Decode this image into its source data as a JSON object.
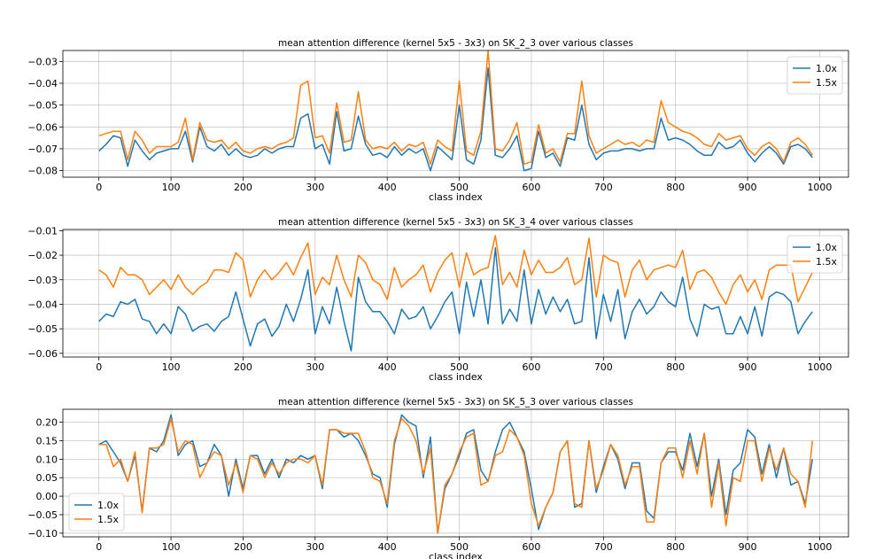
{
  "colors": {
    "series_1": "#1f77b4",
    "series_2": "#ff7f0e"
  },
  "chart_data": [
    {
      "type": "line",
      "title": "mean attention difference (kernel 5x5 - 3x3) on SK_2_3 over various classes",
      "xlabel": "class index",
      "ylabel": "",
      "xlim": [
        -50,
        1040
      ],
      "ylim": [
        -0.083,
        -0.025
      ],
      "xticks": [
        0,
        100,
        200,
        300,
        400,
        500,
        600,
        700,
        800,
        900,
        1000
      ],
      "xtick_labels": [
        "0",
        "100",
        "200",
        "300",
        "400",
        "500",
        "600",
        "700",
        "800",
        "900",
        "1000"
      ],
      "yticks": [
        -0.08,
        -0.07,
        -0.06,
        -0.05,
        -0.04,
        -0.03
      ],
      "ytick_labels": [
        "−0.08",
        "−0.07",
        "−0.06",
        "−0.05",
        "−0.04",
        "−0.03"
      ],
      "grid": true,
      "legend": "top-right",
      "x": [
        0,
        10,
        20,
        30,
        40,
        50,
        60,
        70,
        80,
        90,
        100,
        110,
        120,
        130,
        140,
        150,
        160,
        170,
        180,
        190,
        200,
        210,
        220,
        230,
        240,
        250,
        260,
        270,
        280,
        290,
        300,
        310,
        320,
        330,
        340,
        350,
        360,
        370,
        380,
        390,
        400,
        410,
        420,
        430,
        440,
        450,
        460,
        470,
        480,
        490,
        500,
        510,
        520,
        530,
        540,
        550,
        560,
        570,
        580,
        590,
        600,
        610,
        620,
        630,
        640,
        650,
        660,
        670,
        680,
        690,
        700,
        710,
        720,
        730,
        740,
        750,
        760,
        770,
        780,
        790,
        800,
        810,
        820,
        830,
        840,
        850,
        860,
        870,
        880,
        890,
        900,
        910,
        920,
        930,
        940,
        950,
        960,
        970,
        980,
        990
      ],
      "series": [
        {
          "name": "1.0x",
          "values": [
            -0.071,
            -0.068,
            -0.064,
            -0.065,
            -0.078,
            -0.066,
            -0.071,
            -0.075,
            -0.072,
            -0.071,
            -0.07,
            -0.07,
            -0.062,
            -0.076,
            -0.06,
            -0.069,
            -0.071,
            -0.068,
            -0.073,
            -0.07,
            -0.073,
            -0.074,
            -0.073,
            -0.07,
            -0.072,
            -0.07,
            -0.069,
            -0.069,
            -0.056,
            -0.054,
            -0.07,
            -0.068,
            -0.077,
            -0.053,
            -0.071,
            -0.07,
            -0.055,
            -0.068,
            -0.073,
            -0.072,
            -0.074,
            -0.069,
            -0.073,
            -0.07,
            -0.072,
            -0.07,
            -0.08,
            -0.069,
            -0.072,
            -0.075,
            -0.05,
            -0.075,
            -0.077,
            -0.066,
            -0.033,
            -0.073,
            -0.074,
            -0.07,
            -0.064,
            -0.08,
            -0.079,
            -0.062,
            -0.074,
            -0.072,
            -0.078,
            -0.065,
            -0.066,
            -0.05,
            -0.068,
            -0.075,
            -0.072,
            -0.071,
            -0.071,
            -0.07,
            -0.07,
            -0.071,
            -0.07,
            -0.07,
            -0.056,
            -0.066,
            -0.065,
            -0.066,
            -0.068,
            -0.071,
            -0.073,
            -0.073,
            -0.067,
            -0.07,
            -0.069,
            -0.066,
            -0.072,
            -0.076,
            -0.072,
            -0.069,
            -0.072,
            -0.077,
            -0.069,
            -0.068,
            -0.07,
            -0.074
          ]
        },
        {
          "name": "1.5x",
          "values": [
            -0.064,
            -0.063,
            -0.062,
            -0.062,
            -0.075,
            -0.062,
            -0.066,
            -0.072,
            -0.069,
            -0.069,
            -0.069,
            -0.067,
            -0.056,
            -0.075,
            -0.058,
            -0.066,
            -0.067,
            -0.066,
            -0.07,
            -0.067,
            -0.071,
            -0.072,
            -0.07,
            -0.069,
            -0.07,
            -0.068,
            -0.067,
            -0.065,
            -0.041,
            -0.039,
            -0.065,
            -0.064,
            -0.072,
            -0.049,
            -0.067,
            -0.066,
            -0.044,
            -0.066,
            -0.07,
            -0.069,
            -0.07,
            -0.067,
            -0.071,
            -0.068,
            -0.069,
            -0.067,
            -0.077,
            -0.066,
            -0.069,
            -0.071,
            -0.039,
            -0.071,
            -0.073,
            -0.062,
            -0.025,
            -0.07,
            -0.071,
            -0.066,
            -0.058,
            -0.077,
            -0.076,
            -0.059,
            -0.072,
            -0.07,
            -0.076,
            -0.063,
            -0.063,
            -0.039,
            -0.064,
            -0.072,
            -0.07,
            -0.068,
            -0.066,
            -0.068,
            -0.067,
            -0.069,
            -0.066,
            -0.067,
            -0.048,
            -0.058,
            -0.06,
            -0.062,
            -0.063,
            -0.065,
            -0.068,
            -0.069,
            -0.063,
            -0.066,
            -0.065,
            -0.064,
            -0.07,
            -0.073,
            -0.069,
            -0.067,
            -0.07,
            -0.076,
            -0.067,
            -0.065,
            -0.068,
            -0.073
          ]
        }
      ]
    },
    {
      "type": "line",
      "title": "mean attention difference (kernel 5x5 - 3x3) on SK_3_4 over various classes",
      "xlabel": "class index",
      "ylabel": "",
      "xlim": [
        -50,
        1040
      ],
      "ylim": [
        -0.0615,
        -0.0095
      ],
      "xticks": [
        0,
        100,
        200,
        300,
        400,
        500,
        600,
        700,
        800,
        900,
        1000
      ],
      "xtick_labels": [
        "0",
        "100",
        "200",
        "300",
        "400",
        "500",
        "600",
        "700",
        "800",
        "900",
        "1000"
      ],
      "yticks": [
        -0.06,
        -0.05,
        -0.04,
        -0.03,
        -0.02,
        -0.01
      ],
      "ytick_labels": [
        "−0.06",
        "−0.05",
        "−0.04",
        "−0.03",
        "−0.02",
        "−0.01"
      ],
      "grid": true,
      "legend": "top-right",
      "x": [
        0,
        10,
        20,
        30,
        40,
        50,
        60,
        70,
        80,
        90,
        100,
        110,
        120,
        130,
        140,
        150,
        160,
        170,
        180,
        190,
        200,
        210,
        220,
        230,
        240,
        250,
        260,
        270,
        280,
        290,
        300,
        310,
        320,
        330,
        340,
        350,
        360,
        370,
        380,
        390,
        400,
        410,
        420,
        430,
        440,
        450,
        460,
        470,
        480,
        490,
        500,
        510,
        520,
        530,
        540,
        550,
        560,
        570,
        580,
        590,
        600,
        610,
        620,
        630,
        640,
        650,
        660,
        670,
        680,
        690,
        700,
        710,
        720,
        730,
        740,
        750,
        760,
        770,
        780,
        790,
        800,
        810,
        820,
        830,
        840,
        850,
        860,
        870,
        880,
        890,
        900,
        910,
        920,
        930,
        940,
        950,
        960,
        970,
        980,
        990
      ],
      "series": [
        {
          "name": "1.0x",
          "values": [
            -0.047,
            -0.044,
            -0.045,
            -0.039,
            -0.04,
            -0.038,
            -0.046,
            -0.047,
            -0.052,
            -0.048,
            -0.052,
            -0.041,
            -0.044,
            -0.051,
            -0.049,
            -0.048,
            -0.051,
            -0.047,
            -0.045,
            -0.035,
            -0.046,
            -0.057,
            -0.048,
            -0.046,
            -0.053,
            -0.049,
            -0.04,
            -0.047,
            -0.038,
            -0.026,
            -0.052,
            -0.041,
            -0.048,
            -0.033,
            -0.047,
            -0.059,
            -0.029,
            -0.039,
            -0.043,
            -0.043,
            -0.047,
            -0.052,
            -0.042,
            -0.046,
            -0.045,
            -0.041,
            -0.05,
            -0.045,
            -0.039,
            -0.035,
            -0.052,
            -0.031,
            -0.045,
            -0.03,
            -0.048,
            -0.017,
            -0.048,
            -0.042,
            -0.047,
            -0.026,
            -0.048,
            -0.034,
            -0.044,
            -0.037,
            -0.043,
            -0.038,
            -0.048,
            -0.047,
            -0.021,
            -0.054,
            -0.036,
            -0.047,
            -0.034,
            -0.054,
            -0.043,
            -0.038,
            -0.044,
            -0.041,
            -0.035,
            -0.039,
            -0.041,
            -0.029,
            -0.046,
            -0.053,
            -0.04,
            -0.042,
            -0.041,
            -0.052,
            -0.052,
            -0.045,
            -0.052,
            -0.041,
            -0.053,
            -0.037,
            -0.035,
            -0.036,
            -0.039,
            -0.052,
            -0.047,
            -0.043
          ]
        },
        {
          "name": "1.5x",
          "values": [
            -0.026,
            -0.028,
            -0.033,
            -0.025,
            -0.028,
            -0.028,
            -0.03,
            -0.036,
            -0.033,
            -0.03,
            -0.034,
            -0.028,
            -0.033,
            -0.036,
            -0.033,
            -0.031,
            -0.026,
            -0.026,
            -0.027,
            -0.019,
            -0.022,
            -0.037,
            -0.03,
            -0.026,
            -0.03,
            -0.027,
            -0.023,
            -0.028,
            -0.021,
            -0.015,
            -0.036,
            -0.029,
            -0.032,
            -0.02,
            -0.03,
            -0.037,
            -0.02,
            -0.023,
            -0.03,
            -0.032,
            -0.038,
            -0.025,
            -0.033,
            -0.03,
            -0.028,
            -0.024,
            -0.035,
            -0.027,
            -0.022,
            -0.019,
            -0.033,
            -0.019,
            -0.028,
            -0.026,
            -0.025,
            -0.012,
            -0.032,
            -0.027,
            -0.033,
            -0.018,
            -0.028,
            -0.022,
            -0.027,
            -0.027,
            -0.025,
            -0.021,
            -0.032,
            -0.03,
            -0.013,
            -0.037,
            -0.02,
            -0.022,
            -0.023,
            -0.037,
            -0.026,
            -0.022,
            -0.03,
            -0.026,
            -0.025,
            -0.024,
            -0.025,
            -0.018,
            -0.034,
            -0.027,
            -0.026,
            -0.029,
            -0.035,
            -0.04,
            -0.032,
            -0.028,
            -0.035,
            -0.03,
            -0.038,
            -0.026,
            -0.024,
            -0.024,
            -0.024,
            -0.039,
            -0.033,
            -0.027
          ]
        }
      ]
    },
    {
      "type": "line",
      "title": "mean attention difference (kernel 5x5 - 3x3) on SK_5_3 over various classes",
      "xlabel": "class index",
      "ylabel": "",
      "xlim": [
        -50,
        1040
      ],
      "ylim": [
        -0.11,
        0.235
      ],
      "xticks": [
        0,
        100,
        200,
        300,
        400,
        500,
        600,
        700,
        800,
        900,
        1000
      ],
      "xtick_labels": [
        "0",
        "100",
        "200",
        "300",
        "400",
        "500",
        "600",
        "700",
        "800",
        "900",
        "1000"
      ],
      "yticks": [
        -0.1,
        -0.05,
        0.0,
        0.05,
        0.1,
        0.15,
        0.2
      ],
      "ytick_labels": [
        "−0.10",
        "−0.05",
        "0.00",
        "0.05",
        "0.10",
        "0.15",
        "0.20"
      ],
      "grid": true,
      "legend": "bottom-left",
      "x": [
        0,
        10,
        20,
        30,
        40,
        50,
        60,
        70,
        80,
        90,
        100,
        110,
        120,
        130,
        140,
        150,
        160,
        170,
        180,
        190,
        200,
        210,
        220,
        230,
        240,
        250,
        260,
        270,
        280,
        290,
        300,
        310,
        320,
        330,
        340,
        350,
        360,
        370,
        380,
        390,
        400,
        410,
        420,
        430,
        440,
        450,
        460,
        470,
        480,
        490,
        500,
        510,
        520,
        530,
        540,
        550,
        560,
        570,
        580,
        590,
        600,
        610,
        620,
        630,
        640,
        650,
        660,
        670,
        680,
        690,
        700,
        710,
        720,
        730,
        740,
        750,
        760,
        770,
        780,
        790,
        800,
        810,
        820,
        830,
        840,
        850,
        860,
        870,
        880,
        890,
        900,
        910,
        920,
        930,
        940,
        950,
        960,
        970,
        980,
        990
      ],
      "series": [
        {
          "name": "1.0x",
          "values": [
            0.14,
            0.15,
            0.12,
            0.09,
            0.04,
            0.11,
            -0.04,
            0.13,
            0.12,
            0.15,
            0.22,
            0.11,
            0.14,
            0.15,
            0.08,
            0.09,
            0.14,
            0.11,
            0.0,
            0.1,
            0.02,
            0.11,
            0.11,
            0.06,
            0.1,
            0.05,
            0.1,
            0.09,
            0.11,
            0.1,
            0.11,
            0.02,
            0.18,
            0.18,
            0.16,
            0.17,
            0.15,
            0.11,
            0.06,
            0.05,
            -0.03,
            0.14,
            0.22,
            0.2,
            0.19,
            0.05,
            0.16,
            -0.1,
            0.02,
            0.06,
            0.11,
            0.17,
            0.18,
            0.07,
            0.04,
            0.12,
            0.18,
            0.2,
            0.16,
            0.12,
            0.02,
            -0.09,
            -0.03,
            0.01,
            0.12,
            0.15,
            -0.03,
            -0.02,
            0.15,
            0.01,
            0.08,
            0.14,
            0.1,
            0.02,
            0.09,
            0.09,
            -0.04,
            -0.06,
            0.09,
            0.12,
            0.12,
            0.07,
            0.17,
            0.08,
            0.17,
            0.0,
            0.1,
            -0.05,
            0.07,
            0.09,
            0.18,
            0.16,
            0.06,
            0.14,
            0.05,
            0.13,
            0.03,
            0.04,
            -0.02,
            0.1
          ]
        },
        {
          "name": "1.5x",
          "values": [
            0.14,
            0.14,
            0.08,
            0.1,
            0.04,
            0.12,
            -0.045,
            0.13,
            0.13,
            0.14,
            0.21,
            0.12,
            0.15,
            0.14,
            0.05,
            0.09,
            0.12,
            0.11,
            0.03,
            0.09,
            0.01,
            0.11,
            0.1,
            0.05,
            0.09,
            0.06,
            0.09,
            0.1,
            0.1,
            0.09,
            0.11,
            0.03,
            0.18,
            0.18,
            0.17,
            0.17,
            0.17,
            0.12,
            0.05,
            0.04,
            -0.02,
            0.15,
            0.21,
            0.19,
            0.15,
            0.06,
            0.13,
            -0.1,
            0.03,
            0.06,
            0.12,
            0.16,
            0.17,
            0.03,
            0.04,
            0.11,
            0.12,
            0.18,
            0.16,
            0.11,
            -0.02,
            -0.08,
            -0.03,
            0.01,
            0.12,
            0.15,
            -0.02,
            -0.03,
            0.15,
            0.02,
            0.07,
            0.14,
            0.11,
            0.03,
            0.08,
            0.08,
            -0.07,
            -0.07,
            0.09,
            0.13,
            0.13,
            0.05,
            0.15,
            0.06,
            0.17,
            -0.03,
            0.09,
            -0.08,
            0.05,
            0.04,
            0.15,
            0.15,
            0.04,
            0.13,
            0.07,
            0.13,
            0.06,
            0.04,
            -0.03,
            0.15
          ]
        }
      ]
    }
  ]
}
